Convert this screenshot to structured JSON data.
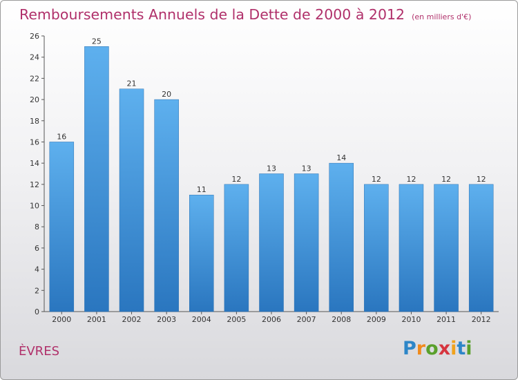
{
  "header": {
    "title": "Remboursements Annuels de la Dette de 2000 à 2012",
    "subtitle": "(en milliers d'€)"
  },
  "footer": {
    "city": "ÈVRES",
    "logo": {
      "name": "Proxiti",
      "letters": [
        "P",
        "r",
        "o",
        "x",
        "i",
        "t",
        "i"
      ],
      "colors": [
        "#2d86c8",
        "#f08a1c",
        "#5aa02c",
        "#d6353f",
        "#f0a21c",
        "#2d86c8",
        "#5aa02c"
      ]
    }
  },
  "chart_data": {
    "type": "bar",
    "title": "Remboursements Annuels de la Dette de 2000 à 2012",
    "categories": [
      "2000",
      "2001",
      "2002",
      "2003",
      "2004",
      "2005",
      "2006",
      "2007",
      "2008",
      "2009",
      "2010",
      "2011",
      "2012"
    ],
    "values": [
      16,
      25,
      21,
      20,
      11,
      12,
      13,
      13,
      14,
      12,
      12,
      12,
      12
    ],
    "ylim": [
      0,
      26
    ],
    "yticks": [
      0,
      2,
      4,
      6,
      8,
      10,
      12,
      14,
      16,
      18,
      20,
      22,
      24,
      26
    ],
    "grid": false,
    "bar_color": "#3d8fd6",
    "title_color": "#b0306a"
  }
}
